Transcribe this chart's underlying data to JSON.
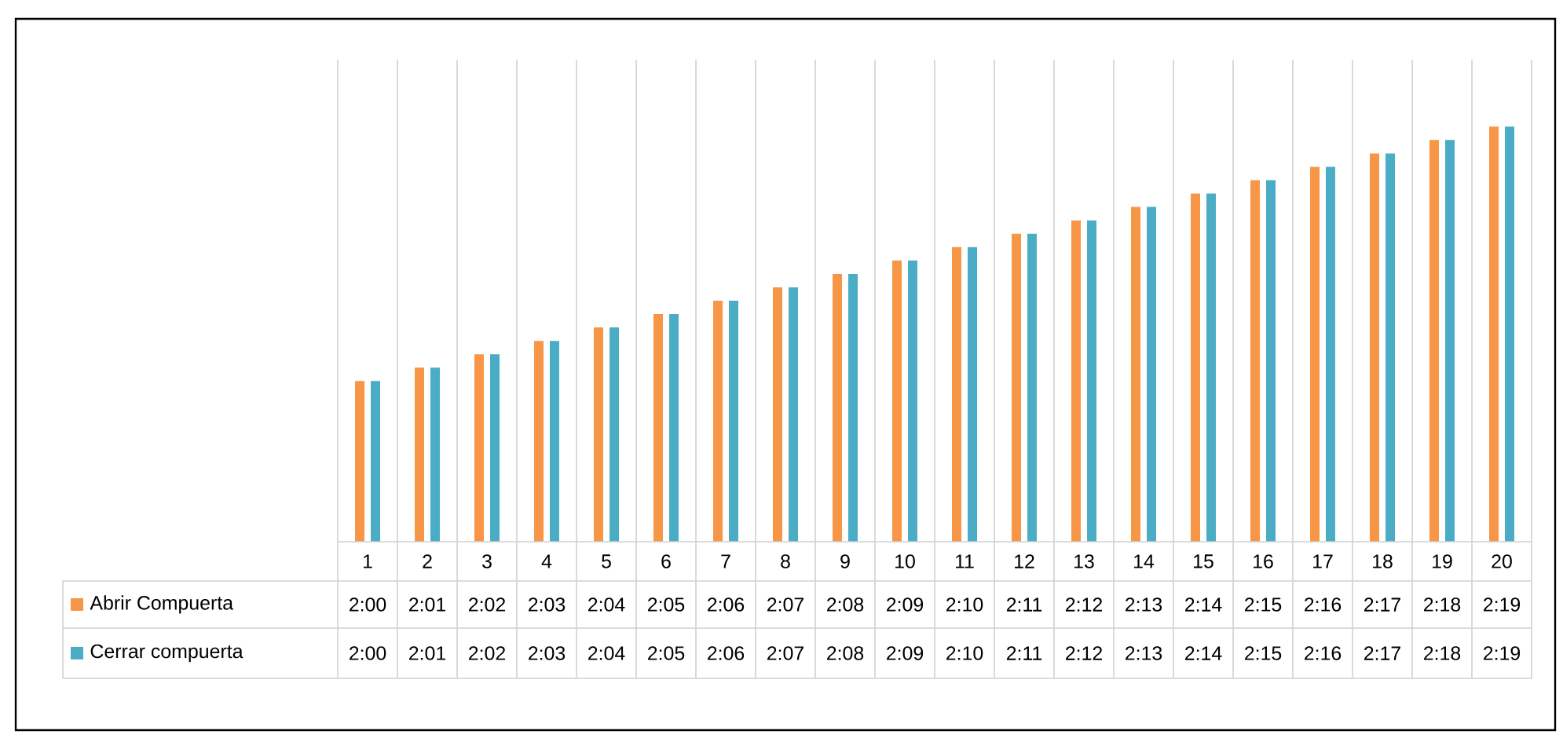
{
  "chart_data": {
    "type": "bar",
    "categories": [
      "1",
      "2",
      "3",
      "4",
      "5",
      "6",
      "7",
      "8",
      "9",
      "10",
      "11",
      "12",
      "13",
      "14",
      "15",
      "16",
      "17",
      "18",
      "19",
      "20"
    ],
    "series": [
      {
        "name": "Abrir Compuerta",
        "color": "#f79646",
        "values": [
          2.0,
          2.0167,
          2.0333,
          2.05,
          2.0667,
          2.0833,
          2.1,
          2.1167,
          2.1333,
          2.15,
          2.1667,
          2.1833,
          2.2,
          2.2167,
          2.2333,
          2.25,
          2.2667,
          2.2833,
          2.3,
          2.3167
        ],
        "value_labels": [
          "2:00",
          "2:01",
          "2:02",
          "2:03",
          "2:04",
          "2:05",
          "2:06",
          "2:07",
          "2:08",
          "2:09",
          "2:10",
          "2:11",
          "2:12",
          "2:13",
          "2:14",
          "2:15",
          "2:16",
          "2:17",
          "2:18",
          "2:19"
        ]
      },
      {
        "name": "Cerrar compuerta",
        "color": "#4bacc6",
        "values": [
          2.0,
          2.0167,
          2.0333,
          2.05,
          2.0667,
          2.0833,
          2.1,
          2.1167,
          2.1333,
          2.15,
          2.1667,
          2.1833,
          2.2,
          2.2167,
          2.2333,
          2.25,
          2.2667,
          2.2833,
          2.3,
          2.3167
        ],
        "value_labels": [
          "2:00",
          "2:01",
          "2:02",
          "2:03",
          "2:04",
          "2:05",
          "2:06",
          "2:07",
          "2:08",
          "2:09",
          "2:10",
          "2:11",
          "2:12",
          "2:13",
          "2:14",
          "2:15",
          "2:16",
          "2:17",
          "2:18",
          "2:19"
        ]
      }
    ],
    "ylim": [
      1.8,
      2.4
    ],
    "grid": "x",
    "tick_labels": "x",
    "legend": "bottom left"
  }
}
